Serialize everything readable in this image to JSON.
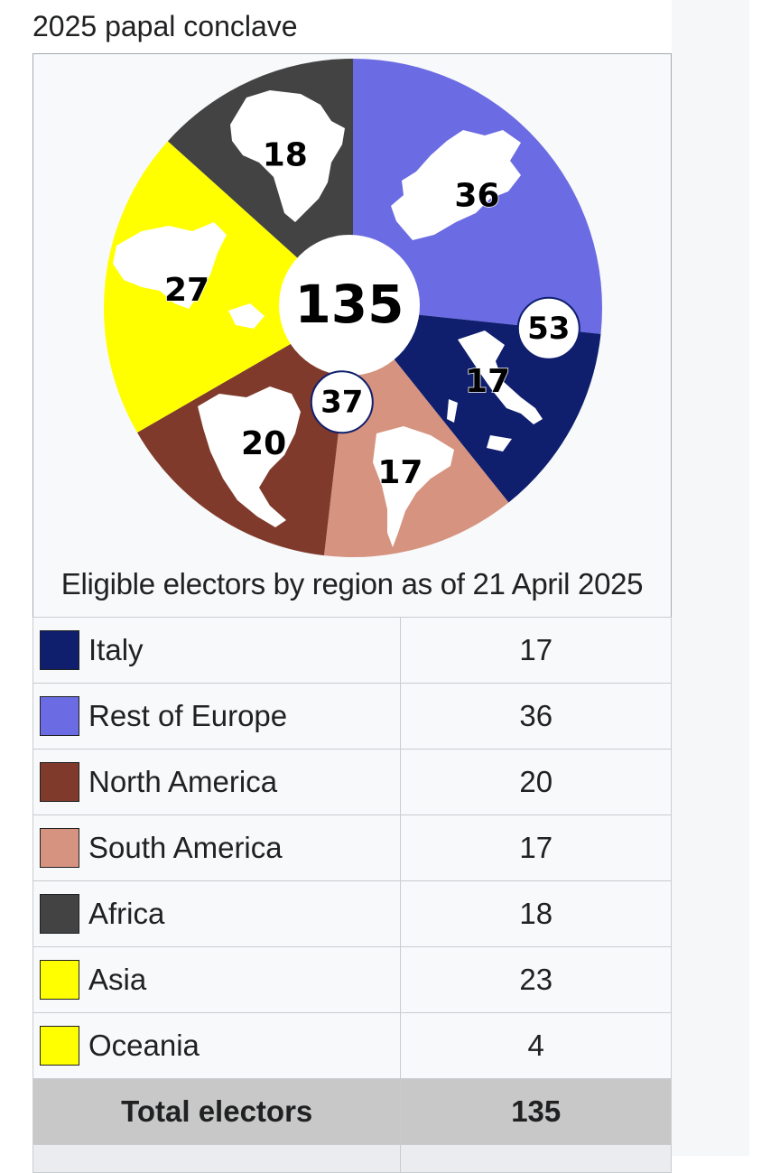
{
  "page_title": "2025 papal conclave",
  "chart_data": {
    "type": "pie",
    "title": "",
    "total": 135,
    "center_label": "135",
    "slices": [
      {
        "name": "Rest of Europe",
        "value": 36,
        "color": "#6b6be3",
        "label": "36"
      },
      {
        "name": "Italy",
        "value": 17,
        "color": "#0f1f6e",
        "label": "17"
      },
      {
        "name": "South America",
        "value": 17,
        "color": "#d6937f",
        "label": "17"
      },
      {
        "name": "North America",
        "value": 20,
        "color": "#7f3a2b",
        "label": "20"
      },
      {
        "name": "Asia + Oceania",
        "value": 27,
        "color": "#ffff00",
        "label": "27"
      },
      {
        "name": "Africa",
        "value": 18,
        "color": "#434343",
        "label": "18"
      }
    ],
    "group_labels": [
      {
        "name": "Europe",
        "value": 53,
        "label": "53"
      },
      {
        "name": "Americas",
        "value": 37,
        "label": "37"
      }
    ],
    "icons": [
      "europe-map-icon",
      "italy-map-icon",
      "south-america-map-icon",
      "north-america-map-icon",
      "asia-oceania-map-icon",
      "africa-map-icon"
    ]
  },
  "caption": "Eligible electors by region as of 21 April 2025",
  "legend": [
    {
      "label": "Italy",
      "value": "17",
      "color": "#0f1f6e"
    },
    {
      "label": "Rest of Europe",
      "value": "36",
      "color": "#6b6be3"
    },
    {
      "label": "North America",
      "value": "20",
      "color": "#7f3a2b"
    },
    {
      "label": "South America",
      "value": "17",
      "color": "#d6937f"
    },
    {
      "label": "Africa",
      "value": "18",
      "color": "#434343"
    },
    {
      "label": "Asia",
      "value": "23",
      "color": "#ffff00"
    },
    {
      "label": "Oceania",
      "value": "4",
      "color": "#ffff00"
    }
  ],
  "total": {
    "label": "Total electors",
    "value": "135"
  }
}
